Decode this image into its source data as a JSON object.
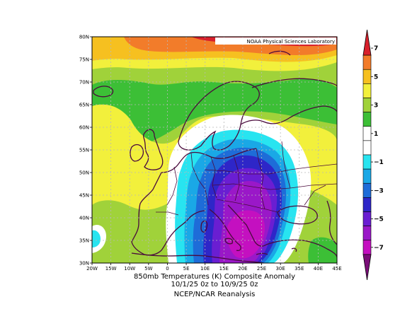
{
  "map": {
    "credit": "NOAA Physical Sciences Laboratory",
    "lat_labels": [
      "80N",
      "75N",
      "70N",
      "65N",
      "60N",
      "55N",
      "50N",
      "45N",
      "40N",
      "35N",
      "30N"
    ],
    "lon_labels": [
      "20W",
      "15W",
      "10W",
      "5W",
      "0",
      "5E",
      "10E",
      "15E",
      "20E",
      "25E",
      "30E",
      "35E",
      "40E",
      "45E"
    ],
    "extent": {
      "lon_min": -20,
      "lon_max": 45,
      "lat_min": 30,
      "lat_max": 80
    },
    "grid": true
  },
  "caption": {
    "line1": "850mb Temperatures (K)   Composite Anomaly",
    "line2": "10/1/25 0z  to 10/9/25 0z",
    "line3": "NCEP/NCAR Reanalysis"
  },
  "colorbar": {
    "labels": [
      "7",
      "5",
      "3",
      "1",
      "−1",
      "−3",
      "−5",
      "−7"
    ],
    "colors": [
      "#d8202c",
      "#f27c2a",
      "#f6c020",
      "#f2f03c",
      "#a0d23a",
      "#3cbf36",
      "#ffffff",
      "#ffffff",
      "#28e4f0",
      "#1aa8e6",
      "#1e6cd8",
      "#2e26c8",
      "#6a1ed2",
      "#9a18c8",
      "#c410c0",
      "#7a0e78"
    ]
  },
  "colors": {
    "land_outline": "#4a0a3c",
    "grid": "#b8b8b8"
  }
}
